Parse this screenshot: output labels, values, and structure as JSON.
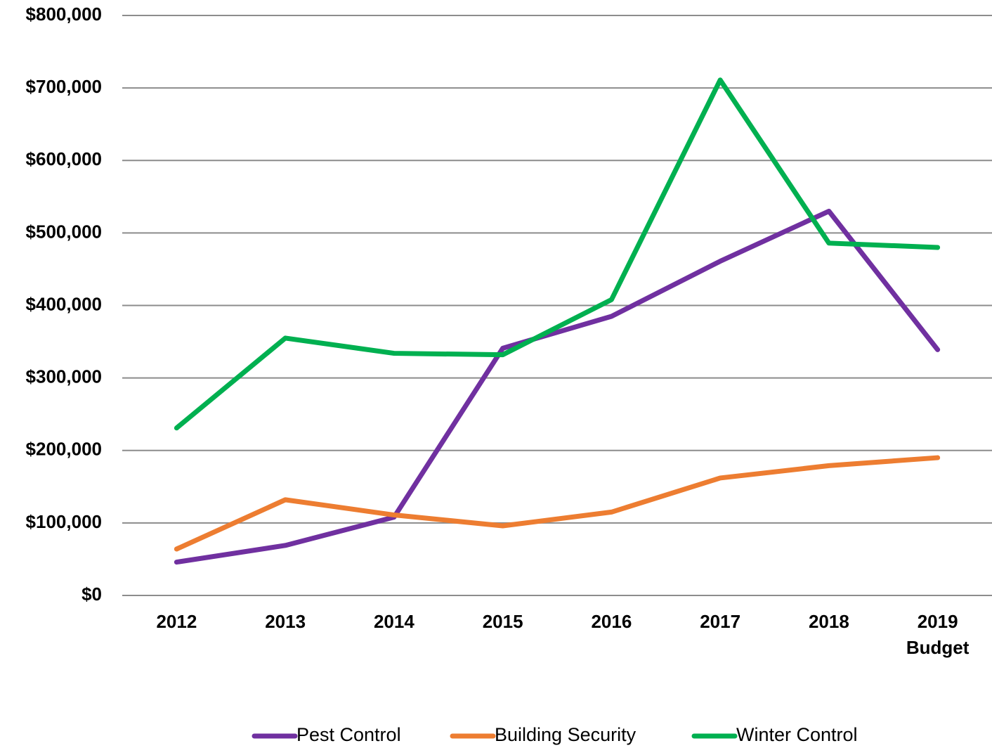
{
  "chart_data": {
    "type": "line",
    "categories": [
      "2012",
      "2013",
      "2014",
      "2015",
      "2016",
      "2017",
      "2018",
      "2019 Budget"
    ],
    "series": [
      {
        "name": "Pest Control",
        "color": "#7030a0",
        "values": [
          46000,
          69000,
          108000,
          341000,
          385000,
          461000,
          530000,
          339000
        ]
      },
      {
        "name": "Building Security",
        "color": "#ed7d31",
        "values": [
          64000,
          132000,
          111000,
          96000,
          115000,
          162000,
          179000,
          190000
        ]
      },
      {
        "name": "Winter Control",
        "color": "#00b050",
        "values": [
          231000,
          355000,
          334000,
          332000,
          408000,
          711000,
          486000,
          480000
        ]
      }
    ],
    "ylim": [
      0,
      800000
    ],
    "yticks": [
      {
        "value": 0,
        "label": "$0"
      },
      {
        "value": 100000,
        "label": "$100,000"
      },
      {
        "value": 200000,
        "label": "$200,000"
      },
      {
        "value": 300000,
        "label": "$300,000"
      },
      {
        "value": 400000,
        "label": "$400,000"
      },
      {
        "value": 500000,
        "label": "$500,000"
      },
      {
        "value": 600000,
        "label": "$600,000"
      },
      {
        "value": 700000,
        "label": "$700,000"
      },
      {
        "value": 800000,
        "label": "$800,000"
      }
    ],
    "grid": true,
    "legend": "bottom"
  }
}
